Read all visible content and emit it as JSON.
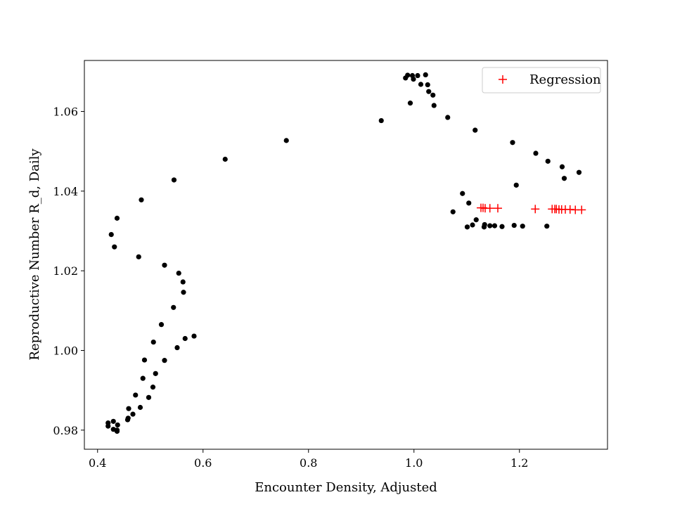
{
  "chart_data": {
    "type": "scatter",
    "title": "",
    "xlabel": "Encounter Density, Adjusted",
    "ylabel": "Reproductive Number R_d, Daily",
    "xlim": [
      0.375,
      1.367
    ],
    "ylim": [
      0.9752,
      1.0728
    ],
    "xticks": [
      0.4,
      0.6,
      0.8,
      1.0,
      1.2
    ],
    "xtick_labels": [
      "0.4",
      "0.6",
      "0.8",
      "1.0",
      "1.2"
    ],
    "yticks": [
      0.98,
      1.0,
      1.02,
      1.04,
      1.06
    ],
    "ytick_labels": [
      "0.98",
      "1.00",
      "1.02",
      "1.04",
      "1.06"
    ],
    "grid": false,
    "legend_position": "upper right",
    "series": [
      {
        "marker": "dot",
        "color": "#000000",
        "points": [
          [
            0.42,
            0.981
          ],
          [
            0.42,
            0.9818
          ],
          [
            0.43,
            0.9822
          ],
          [
            0.43,
            0.9802
          ],
          [
            0.437,
            0.98
          ],
          [
            0.438,
            0.9813
          ],
          [
            0.437,
            0.9797
          ],
          [
            0.457,
            0.9826
          ],
          [
            0.458,
            0.983
          ],
          [
            0.459,
            0.9854
          ],
          [
            0.467,
            0.984
          ],
          [
            0.472,
            0.9888
          ],
          [
            0.481,
            0.9857
          ],
          [
            0.486,
            0.993
          ],
          [
            0.489,
            0.9976
          ],
          [
            0.497,
            0.9882
          ],
          [
            0.505,
            0.9908
          ],
          [
            0.506,
            1.0021
          ],
          [
            0.51,
            0.9942
          ],
          [
            0.521,
            1.0065
          ],
          [
            0.527,
            0.9975
          ],
          [
            0.544,
            1.0108
          ],
          [
            0.551,
            1.0007
          ],
          [
            0.554,
            1.0194
          ],
          [
            0.562,
            1.0172
          ],
          [
            0.563,
            1.0146
          ],
          [
            0.566,
            1.003
          ],
          [
            0.583,
            1.0036
          ],
          [
            0.527,
            1.0214
          ],
          [
            0.478,
            1.0235
          ],
          [
            0.432,
            1.026
          ],
          [
            0.426,
            1.0291
          ],
          [
            0.437,
            1.0332
          ],
          [
            0.483,
            1.0378
          ],
          [
            0.545,
            1.0428
          ],
          [
            0.642,
            1.048
          ],
          [
            0.758,
            1.0527
          ],
          [
            0.938,
            1.0577
          ],
          [
            0.984,
            1.0684
          ],
          [
            0.988,
            1.0691
          ],
          [
            0.993,
            1.0621
          ],
          [
            0.997,
            1.069
          ],
          [
            0.999,
            1.0681
          ],
          [
            1.007,
            1.069
          ],
          [
            1.013,
            1.0668
          ],
          [
            1.022,
            1.0692
          ],
          [
            1.026,
            1.0667
          ],
          [
            1.028,
            1.065
          ],
          [
            1.036,
            1.0641
          ],
          [
            1.038,
            1.0615
          ],
          [
            1.064,
            1.0585
          ],
          [
            1.116,
            1.0553
          ],
          [
            1.187,
            1.0522
          ],
          [
            1.231,
            1.0495
          ],
          [
            1.254,
            1.0475
          ],
          [
            1.281,
            1.0461
          ],
          [
            1.285,
            1.0432
          ],
          [
            1.313,
            1.0447
          ],
          [
            1.194,
            1.0415
          ],
          [
            1.092,
            1.0394
          ],
          [
            1.104,
            1.037
          ],
          [
            1.074,
            1.0348
          ],
          [
            1.118,
            1.0328
          ],
          [
            1.111,
            1.0315
          ],
          [
            1.101,
            1.031
          ],
          [
            1.133,
            1.031
          ],
          [
            1.134,
            1.0316
          ],
          [
            1.144,
            1.0313
          ],
          [
            1.153,
            1.0313
          ],
          [
            1.167,
            1.0311
          ],
          [
            1.19,
            1.0314
          ],
          [
            1.206,
            1.0312
          ],
          [
            1.252,
            1.0312
          ]
        ]
      },
      {
        "name": "Regression",
        "marker": "plus",
        "color": "#ff0000",
        "points": [
          [
            1.127,
            1.0358
          ],
          [
            1.131,
            1.0358
          ],
          [
            1.135,
            1.0357
          ],
          [
            1.144,
            1.0357
          ],
          [
            1.159,
            1.0357
          ],
          [
            1.23,
            1.0355
          ],
          [
            1.262,
            1.0355
          ],
          [
            1.267,
            1.0355
          ],
          [
            1.27,
            1.0355
          ],
          [
            1.275,
            1.0354
          ],
          [
            1.28,
            1.0354
          ],
          [
            1.287,
            1.0354
          ],
          [
            1.296,
            1.0354
          ],
          [
            1.306,
            1.0353
          ],
          [
            1.318,
            1.0353
          ]
        ]
      }
    ]
  }
}
